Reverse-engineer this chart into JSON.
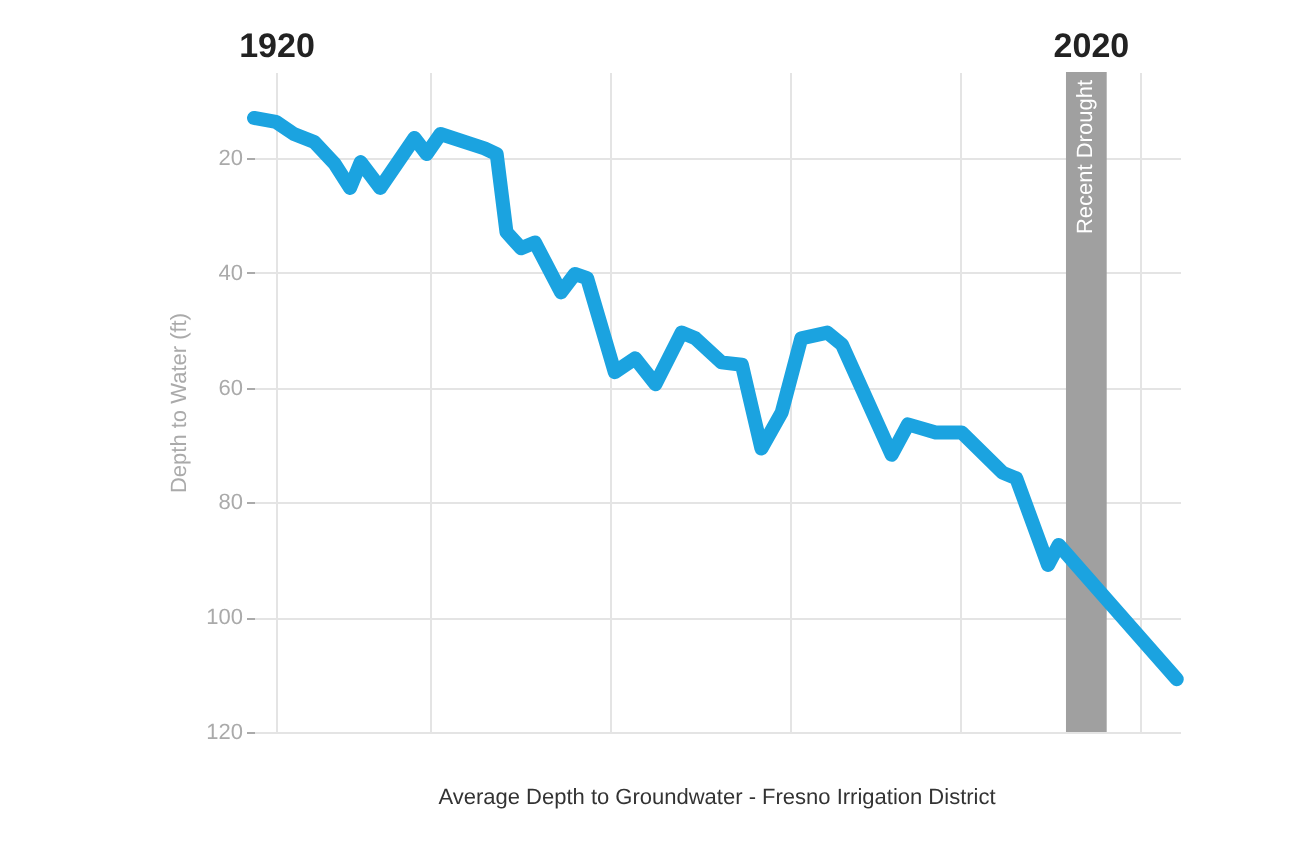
{
  "chart_data": {
    "type": "line",
    "ylabel": "Depth to Water (ft)",
    "annotations": [
      "Average Depth to Groundwater - Fresno Irrigation District"
    ],
    "x": [
      1917.3,
      1920.0,
      1922.2,
      1924.7,
      1927.2,
      1929.1,
      1930.4,
      1932.8,
      1937.0,
      1938.5,
      1940.2,
      1945.6,
      1947.1,
      1948.3,
      1950.1,
      1951.8,
      1955.0,
      1956.7,
      1958.2,
      1961.6,
      1964.1,
      1966.6,
      1969.8,
      1971.5,
      1974.7,
      1977.2,
      1979.6,
      1982.1,
      1984.5,
      1987.7,
      1989.5,
      1995.6,
      1997.6,
      2001.0,
      2004.2,
      2009.2,
      2010.9,
      2014.8,
      2016.1,
      2030.6
    ],
    "series": [
      {
        "color": "#1ba3e0",
        "values": [
          13,
          13.7,
          15.8,
          17.2,
          21,
          25.2,
          20.7,
          25.2,
          16.5,
          19.3,
          15.8,
          18.3,
          19.3,
          32.9,
          35.7,
          34.7,
          43.4,
          40.2,
          40.9,
          57.3,
          54.9,
          59.4,
          50.4,
          51.4,
          55.6,
          56,
          70.6,
          64.3,
          51.4,
          50.4,
          52.5,
          71.7,
          66.4,
          67.8,
          67.8,
          74.8,
          75.8,
          90.9,
          87.4,
          110.8
        ]
      }
    ],
    "xlim": [
      1917.3,
      2031
    ],
    "xticks": [
      1920,
      {
        "value": 1939,
        "label": null
      },
      {
        "value": 1961,
        "label": null
      },
      {
        "value": 1983,
        "label": null
      },
      {
        "value": 2004,
        "label": null
      },
      2020,
      {
        "value": 2026,
        "label": null
      }
    ],
    "ylim": [
      120,
      5
    ],
    "yticks": [
      20,
      40,
      60,
      80,
      100,
      120
    ],
    "bands": [
      {
        "axis": "x",
        "from": 2017,
        "to": 2022,
        "label": "Recent Drought",
        "color": "#a0a0a0"
      }
    ],
    "grid": true,
    "line_style": "solid"
  }
}
